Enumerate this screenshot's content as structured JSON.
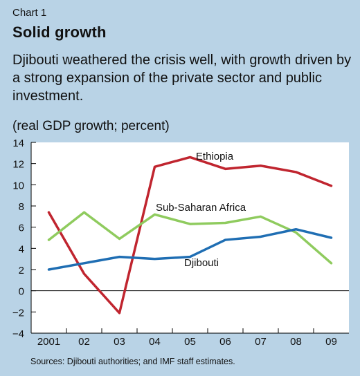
{
  "header": {
    "chart_number": "Chart 1",
    "title": "Solid growth",
    "subtitle": "Djibouti weathered the crisis well, with growth driven by a strong expansion of the private sector and public investment.",
    "units": "(real GDP growth; percent)"
  },
  "footer": {
    "source": "Sources: Djibouti authorities; and IMF staff estimates."
  },
  "colors": {
    "background": "#b9d3e6",
    "plot_background": "#ffffff",
    "ethiopia": "#c0252f",
    "ssa": "#8fcb5e",
    "djibouti": "#1f6eb3"
  },
  "chart_data": {
    "type": "line",
    "categories": [
      "2001",
      "02",
      "03",
      "04",
      "05",
      "06",
      "07",
      "08",
      "09"
    ],
    "ylim": [
      -4,
      14
    ],
    "yticks": [
      -4,
      -2,
      0,
      2,
      4,
      6,
      8,
      10,
      12,
      14
    ],
    "ytick_labels": [
      "−4",
      "−2",
      "0",
      "2",
      "4",
      "6",
      "8",
      "10",
      "12",
      "14"
    ],
    "grid": false,
    "series": [
      {
        "name": "Ethiopia",
        "values": [
          7.4,
          1.6,
          -2.1,
          11.7,
          12.6,
          11.5,
          11.8,
          11.2,
          9.9
        ]
      },
      {
        "name": "Sub-Saharan Africa",
        "values": [
          4.8,
          7.4,
          4.9,
          7.2,
          6.3,
          6.4,
          7.0,
          5.5,
          2.6
        ]
      },
      {
        "name": "Djibouti",
        "values": [
          2.0,
          2.6,
          3.2,
          3.0,
          3.2,
          4.8,
          5.1,
          5.8,
          5.0
        ]
      }
    ]
  }
}
